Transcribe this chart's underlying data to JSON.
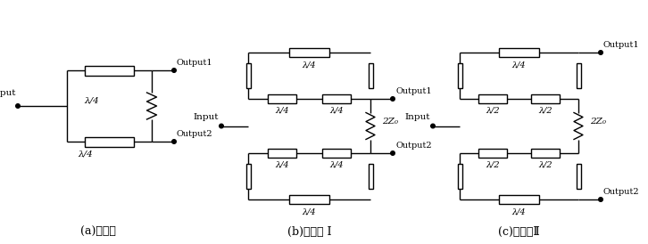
{
  "bg_color": "#ffffff",
  "line_color": "#000000",
  "fig_width": 7.26,
  "fig_height": 2.74,
  "labels": {
    "a_caption": "(a)基本型",
    "b_caption": "(b)改进型 I",
    "c_caption": "(c)改进型Ⅱ",
    "input": "Input",
    "output1": "Output1",
    "output2": "Output2",
    "lam4": "λ/4",
    "lam2": "λ/2",
    "2z0": "2Z₀"
  }
}
